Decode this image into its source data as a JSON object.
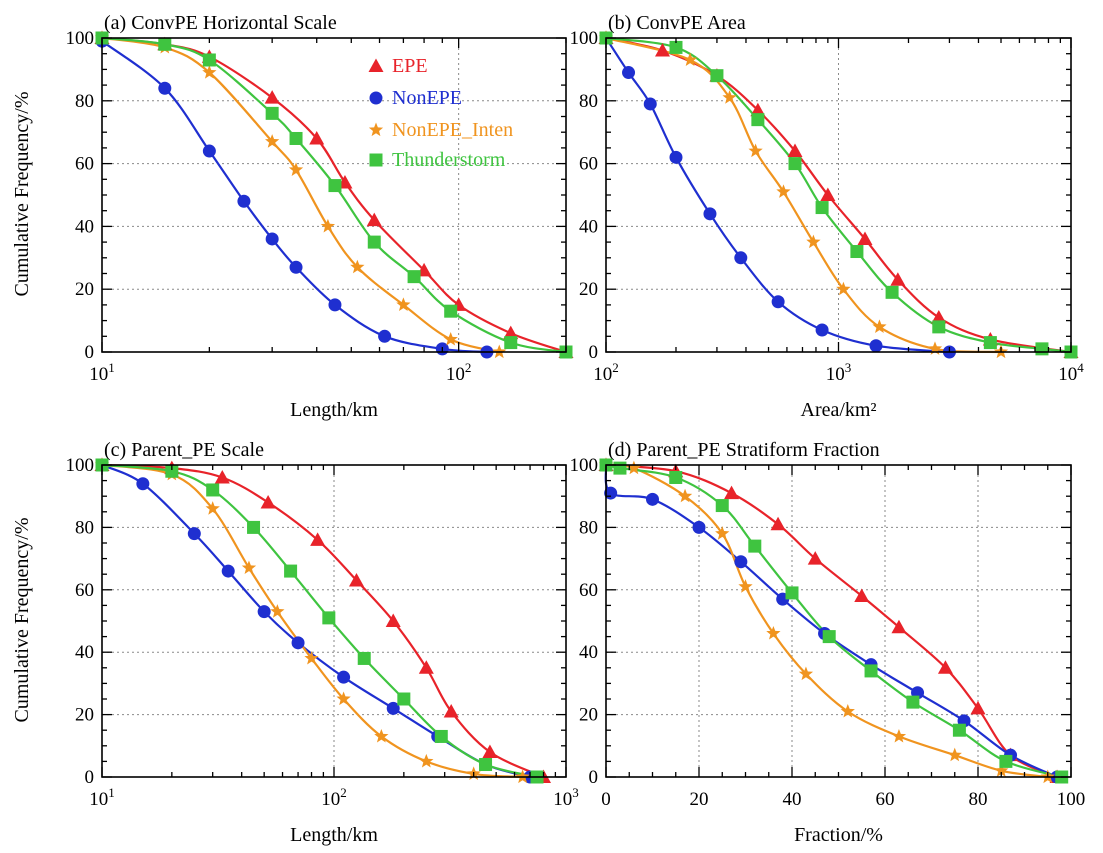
{
  "colors": {
    "EPE": "#e8232a",
    "NonEPE": "#1f2fd0",
    "NonEPE_Inten": "#f0941f",
    "Thunderstorm": "#3fc440"
  },
  "ylabel_shared": "Cumulative Frequency/%",
  "legend": [
    {
      "label": "EPE",
      "marker": "triangle",
      "color": "#e8232a"
    },
    {
      "label": "NonEPE",
      "marker": "circle",
      "color": "#1f2fd0"
    },
    {
      "label": "NonEPE_Inten",
      "marker": "star",
      "color": "#f0941f"
    },
    {
      "label": "Thunderstorm",
      "marker": "square",
      "color": "#3fc440"
    }
  ],
  "chart_data": [
    {
      "type": "line",
      "title": "(a) ConvPE Horizontal Scale",
      "xlabel": "Length/km",
      "xscale": "log",
      "xlim": [
        10,
        200
      ],
      "xticks": [
        {
          "base": "10",
          "exp": "1",
          "value": 10
        },
        {
          "base": "10",
          "exp": "2",
          "value": 100
        }
      ],
      "ylim": [
        0,
        100
      ],
      "yticks": [
        "0",
        "20",
        "40",
        "60",
        "80",
        "100"
      ],
      "grid": true,
      "legend_position": "top-center",
      "series": [
        {
          "name": "EPE",
          "x": [
            10,
            15,
            20,
            30,
            40,
            48,
            58,
            80,
            100,
            140,
            200
          ],
          "y": [
            100,
            98,
            94,
            81,
            68,
            54,
            42,
            26,
            15,
            6,
            0
          ]
        },
        {
          "name": "NonEPE",
          "x": [
            10,
            15,
            20,
            25,
            30,
            35,
            45,
            62,
            90,
            120
          ],
          "y": [
            99,
            84,
            64,
            48,
            36,
            27,
            15,
            5,
            1,
            0
          ]
        },
        {
          "name": "NonEPE_Inten",
          "x": [
            10,
            15,
            20,
            30,
            35,
            43,
            52,
            70,
            95,
            130
          ],
          "y": [
            100,
            97,
            89,
            67,
            58,
            40,
            27,
            15,
            4,
            0
          ]
        },
        {
          "name": "Thunderstorm",
          "x": [
            10,
            15,
            20,
            30,
            35,
            45,
            58,
            75,
            95,
            140,
            200
          ],
          "y": [
            100,
            98,
            93,
            76,
            68,
            53,
            35,
            24,
            13,
            3,
            0
          ]
        }
      ]
    },
    {
      "type": "line",
      "title": "(b) ConvPE Area",
      "xlabel": "Area/km²",
      "xscale": "log",
      "xlim": [
        100,
        10000
      ],
      "xticks": [
        {
          "base": "10",
          "exp": "2",
          "value": 100
        },
        {
          "base": "10",
          "exp": "3",
          "value": 1000
        },
        {
          "base": "10",
          "exp": "4",
          "value": 10000
        }
      ],
      "ylim": [
        0,
        100
      ],
      "yticks": [
        "0",
        "20",
        "40",
        "60",
        "80",
        "100"
      ],
      "grid": true,
      "series": [
        {
          "name": "EPE",
          "x": [
            100,
            175,
            300,
            450,
            650,
            900,
            1300,
            1800,
            2700,
            4500,
            10000
          ],
          "y": [
            100,
            96,
            88,
            77,
            64,
            50,
            36,
            23,
            11,
            4,
            0
          ]
        },
        {
          "name": "NonEPE",
          "x": [
            100,
            125,
            155,
            200,
            280,
            380,
            550,
            850,
            1450,
            3000
          ],
          "y": [
            100,
            89,
            79,
            62,
            44,
            30,
            16,
            7,
            2,
            0
          ]
        },
        {
          "name": "NonEPE_Inten",
          "x": [
            100,
            230,
            340,
            440,
            580,
            780,
            1050,
            1500,
            2600,
            5000
          ],
          "y": [
            100,
            93,
            81,
            64,
            51,
            35,
            20,
            8,
            1,
            0
          ]
        },
        {
          "name": "Thunderstorm",
          "x": [
            100,
            200,
            300,
            450,
            650,
            850,
            1200,
            1700,
            2700,
            4500,
            7500,
            10000
          ],
          "y": [
            100,
            97,
            88,
            74,
            60,
            46,
            32,
            19,
            8,
            3,
            1,
            0
          ]
        }
      ]
    },
    {
      "type": "line",
      "title": "(c) Parent_PE Scale",
      "xlabel": "Length/km",
      "xscale": "log",
      "xlim": [
        10,
        1000
      ],
      "xticks": [
        {
          "base": "10",
          "exp": "1",
          "value": 10
        },
        {
          "base": "10",
          "exp": "2",
          "value": 100
        },
        {
          "base": "10",
          "exp": "3",
          "value": 1000
        }
      ],
      "ylim": [
        0,
        100
      ],
      "yticks": [
        "0",
        "20",
        "40",
        "60",
        "80",
        "100"
      ],
      "grid": true,
      "series": [
        {
          "name": "EPE",
          "x": [
            10,
            20,
            33,
            52,
            85,
            125,
            180,
            250,
            320,
            470,
            800
          ],
          "y": [
            100,
            99,
            96,
            88,
            76,
            63,
            50,
            35,
            21,
            8,
            0
          ]
        },
        {
          "name": "NonEPE",
          "x": [
            10,
            15,
            25,
            35,
            50,
            70,
            110,
            180,
            280,
            450,
            700
          ],
          "y": [
            100,
            94,
            78,
            66,
            53,
            43,
            32,
            22,
            13,
            4,
            0
          ]
        },
        {
          "name": "NonEPE_Inten",
          "x": [
            10,
            20,
            30,
            43,
            57,
            80,
            110,
            160,
            250,
            400,
            650
          ],
          "y": [
            100,
            97,
            86,
            67,
            53,
            38,
            25,
            13,
            5,
            1,
            0
          ]
        },
        {
          "name": "Thunderstorm",
          "x": [
            10,
            20,
            30,
            45,
            65,
            95,
            135,
            200,
            290,
            450,
            750
          ],
          "y": [
            100,
            98,
            92,
            80,
            66,
            51,
            38,
            25,
            13,
            4,
            0
          ]
        }
      ]
    },
    {
      "type": "line",
      "title": "(d) Parent_PE Stratiform Fraction",
      "xlabel": "Fraction/%",
      "xscale": "linear",
      "xlim": [
        0,
        100
      ],
      "xticks": [
        {
          "base": "0",
          "exp": "",
          "value": 0
        },
        {
          "base": "20",
          "exp": "",
          "value": 20
        },
        {
          "base": "40",
          "exp": "",
          "value": 40
        },
        {
          "base": "60",
          "exp": "",
          "value": 60
        },
        {
          "base": "80",
          "exp": "",
          "value": 80
        },
        {
          "base": "100",
          "exp": "",
          "value": 100
        }
      ],
      "ylim": [
        0,
        100
      ],
      "yticks": [
        "0",
        "20",
        "40",
        "60",
        "80",
        "100"
      ],
      "grid": true,
      "series": [
        {
          "name": "EPE",
          "x": [
            0,
            15,
            27,
            37,
            45,
            55,
            63,
            73,
            80,
            87,
            97
          ],
          "y": [
            100,
            98,
            91,
            81,
            70,
            58,
            48,
            35,
            22,
            7,
            0
          ]
        },
        {
          "name": "NonEPE",
          "x": [
            0,
            1,
            10,
            20,
            29,
            38,
            47,
            57,
            67,
            77,
            87,
            97
          ],
          "y": [
            100,
            91,
            89,
            80,
            69,
            57,
            46,
            36,
            27,
            18,
            7,
            0
          ]
        },
        {
          "name": "NonEPE_Inten",
          "x": [
            0,
            6,
            17,
            25,
            30,
            36,
            43,
            52,
            63,
            75,
            85,
            95
          ],
          "y": [
            100,
            99,
            90,
            78,
            61,
            46,
            33,
            21,
            13,
            7,
            2,
            0
          ]
        },
        {
          "name": "Thunderstorm",
          "x": [
            0,
            3,
            15,
            25,
            32,
            40,
            48,
            57,
            66,
            76,
            86,
            98
          ],
          "y": [
            100,
            99,
            96,
            87,
            74,
            59,
            45,
            34,
            24,
            15,
            5,
            0
          ]
        }
      ]
    }
  ]
}
